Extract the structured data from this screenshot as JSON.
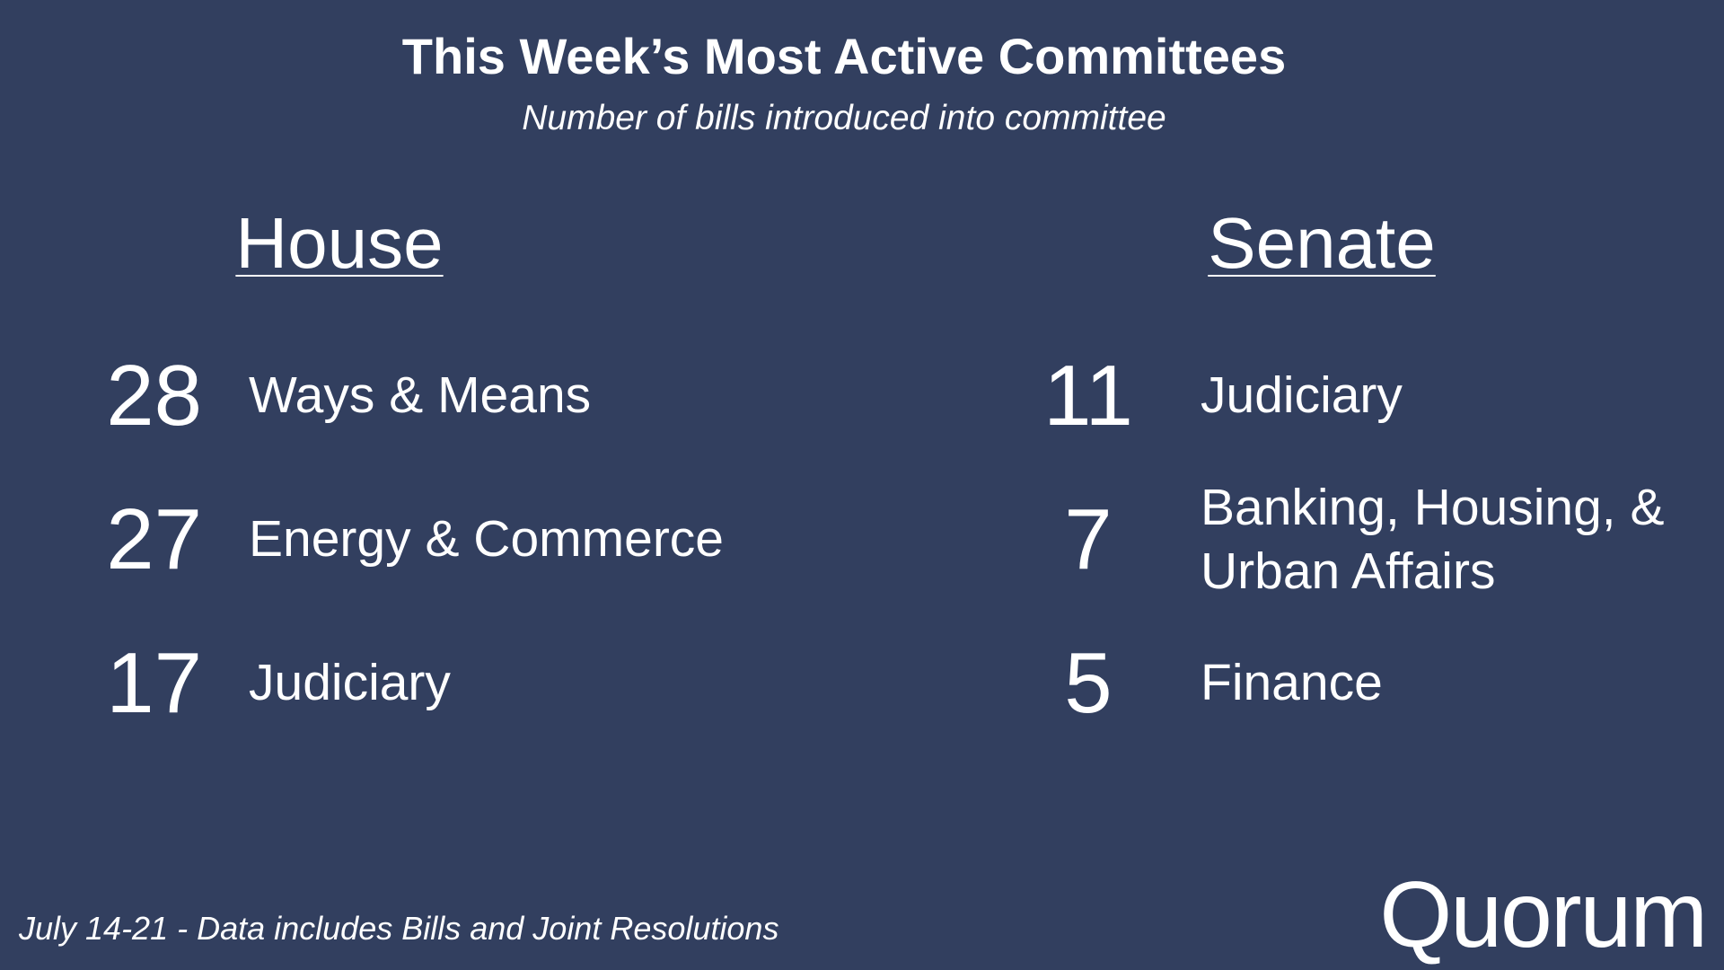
{
  "header": {
    "title": "This Week’s Most Active Committees",
    "subtitle": "Number of bills introduced into committee"
  },
  "sections": [
    {
      "heading": "House",
      "rows": [
        {
          "count": "28",
          "name": "Ways & Means"
        },
        {
          "count": "27",
          "name": "Energy & Commerce"
        },
        {
          "count": "17",
          "name": "Judiciary"
        }
      ]
    },
    {
      "heading": "Senate",
      "rows": [
        {
          "count": "11",
          "name": "Judiciary"
        },
        {
          "count": "7",
          "name": "Banking, Housing, & Urban Affairs"
        },
        {
          "count": "5",
          "name": "Finance"
        }
      ]
    }
  ],
  "footer": {
    "note": "July 14-21 - Data includes Bills and Joint Resolutions",
    "logo": "Quorum"
  }
}
